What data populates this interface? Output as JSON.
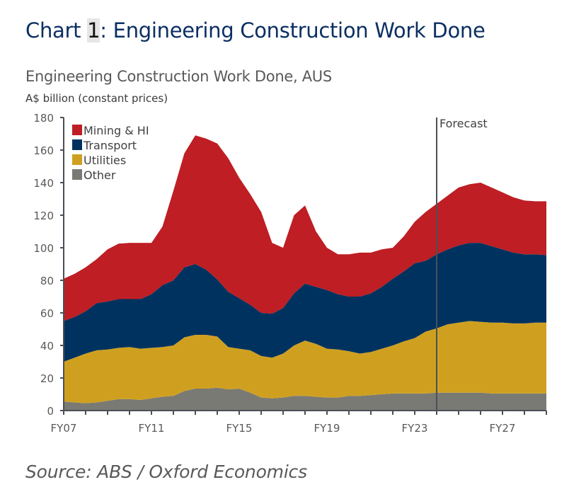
{
  "header": {
    "prefix": "Chart ",
    "number": "1",
    "suffix": ": Engineering Construction Work Done"
  },
  "chart_data": {
    "type": "area",
    "stacked": true,
    "title": "Engineering Construction Work Done, AUS",
    "ylabel": "A$ billion (constant prices)",
    "xlabel": "",
    "ylim": [
      0,
      180
    ],
    "yticks": [
      0,
      20,
      40,
      60,
      80,
      100,
      120,
      140,
      160,
      180
    ],
    "xlim": [
      "FY07",
      "FY29"
    ],
    "xtick_labels": [
      "FY07",
      "FY11",
      "FY15",
      "FY19",
      "FY23",
      "FY27"
    ],
    "legend_position": "top-left",
    "forecast": {
      "label": "Forecast",
      "x": "FY24"
    },
    "x": [
      "FY07",
      "FY07.5",
      "FY08",
      "FY08.5",
      "FY09",
      "FY09.5",
      "FY10",
      "FY10.5",
      "FY11",
      "FY11.5",
      "FY12",
      "FY12.5",
      "FY13",
      "FY13.5",
      "FY14",
      "FY14.5",
      "FY15",
      "FY15.5",
      "FY16",
      "FY16.5",
      "FY17",
      "FY17.5",
      "FY18",
      "FY18.5",
      "FY19",
      "FY19.5",
      "FY20",
      "FY20.5",
      "FY21",
      "FY21.5",
      "FY22",
      "FY22.5",
      "FY23",
      "FY23.5",
      "FY24",
      "FY24.5",
      "FY25",
      "FY25.5",
      "FY26",
      "FY26.5",
      "FY27",
      "FY27.5",
      "FY28",
      "FY28.5",
      "FY29"
    ],
    "series": [
      {
        "name": "Other",
        "color": "#7a7a74",
        "values": [
          5.5,
          5,
          4.5,
          5,
          6,
          7,
          7,
          6.5,
          7.5,
          8.5,
          9,
          12,
          13.5,
          13.5,
          14,
          13,
          13.5,
          11,
          8,
          7.5,
          8,
          9,
          9,
          8.5,
          8,
          8,
          9,
          9,
          9.5,
          10,
          10.5,
          10.5,
          10.5,
          10.5,
          11,
          11,
          11,
          11,
          11,
          10.5,
          10.5,
          10.5,
          10.5,
          10.5,
          10.5
        ]
      },
      {
        "name": "Utilities",
        "color": "#cfa020",
        "values": [
          24.5,
          27.5,
          30.5,
          32,
          31.5,
          31.5,
          32,
          31.5,
          31,
          30.5,
          31,
          33,
          33,
          33,
          31.5,
          26,
          24.5,
          26,
          25.5,
          25,
          27,
          31,
          34,
          32.5,
          30,
          29.5,
          27.5,
          26,
          26.5,
          28,
          29.5,
          32,
          34,
          38,
          39.5,
          42,
          43,
          44,
          43.5,
          43.5,
          43.5,
          43,
          43,
          43.5,
          43.5
        ]
      },
      {
        "name": "Transport",
        "color": "#00325f",
        "values": [
          25,
          25,
          26,
          29,
          29.5,
          30,
          29.5,
          30.5,
          33,
          38,
          40,
          43,
          43.5,
          40,
          35,
          34,
          31,
          28,
          26.5,
          27,
          28,
          32,
          35,
          35,
          36,
          34,
          33.5,
          35,
          36,
          38,
          41,
          43,
          46,
          43.5,
          45.5,
          46,
          47.5,
          48,
          48.5,
          47,
          45,
          43.5,
          42.5,
          42,
          41.5
        ]
      },
      {
        "name": "Mining & HI",
        "color": "#be1e24",
        "values": [
          26,
          26.5,
          27,
          27,
          32,
          34,
          34.5,
          34.5,
          31.5,
          36,
          55,
          70,
          79,
          80.5,
          83.5,
          82,
          74,
          68,
          62,
          43.5,
          37,
          48,
          48,
          34,
          26,
          24.5,
          26,
          27,
          25,
          23,
          19,
          21.5,
          25.5,
          30,
          31,
          33,
          35.5,
          36,
          37,
          36,
          35,
          34,
          33,
          32.5,
          33
        ]
      }
    ]
  },
  "source": "Source: ABS / Oxford Economics"
}
